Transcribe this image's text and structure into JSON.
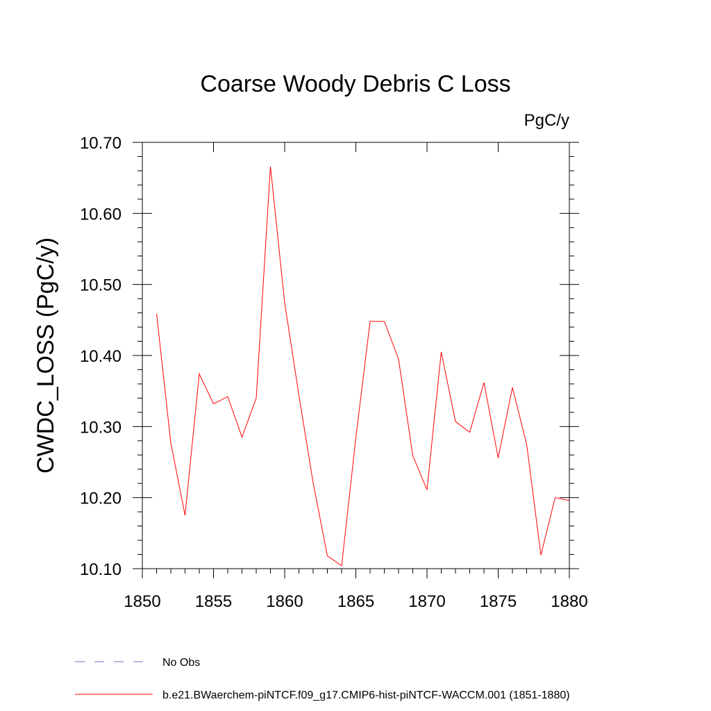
{
  "chart_data": {
    "type": "line",
    "title": "Coarse Woody Debris C Loss",
    "units": "PgC/y",
    "xlabel": "",
    "ylabel": "CWDC_LOSS  (PgC/y)",
    "xlim": [
      1850,
      1880
    ],
    "ylim": [
      10.1,
      10.7
    ],
    "x_ticks": [
      1850,
      1855,
      1860,
      1865,
      1870,
      1875,
      1880
    ],
    "x_tick_labels": [
      "1850",
      "1855",
      "1860",
      "1865",
      "1870",
      "1875",
      "1880"
    ],
    "y_ticks": [
      10.1,
      10.2,
      10.3,
      10.4,
      10.5,
      10.6,
      10.7
    ],
    "y_tick_labels": [
      "10.10",
      "10.20",
      "10.30",
      "10.40",
      "10.50",
      "10.60",
      "10.70"
    ],
    "grid": false,
    "legend_position": "bottom",
    "legend": [
      {
        "label": "No Obs",
        "color": "#7070c0",
        "dash": true
      },
      {
        "label": "b.e21.BWaerchem-piNTCF.f09_g17.CMIP6-hist-piNTCF-WACCM.001 (1851-1880)",
        "color": "#ff0000",
        "dash": false
      }
    ],
    "series": [
      {
        "name": "b.e21.BWaerchem-piNTCF.f09_g17.CMIP6-hist-piNTCF-WACCM.001 (1851-1880)",
        "color": "#ff0000",
        "x": [
          1851,
          1852,
          1853,
          1854,
          1855,
          1856,
          1857,
          1858,
          1859,
          1860,
          1861,
          1862,
          1863,
          1864,
          1865,
          1866,
          1867,
          1868,
          1869,
          1870,
          1871,
          1872,
          1873,
          1874,
          1875,
          1876,
          1877,
          1878,
          1879,
          1880
        ],
        "y": [
          10.459,
          10.277,
          10.175,
          10.374,
          10.332,
          10.342,
          10.285,
          10.34,
          10.666,
          10.474,
          10.344,
          10.221,
          10.118,
          10.104,
          10.284,
          10.448,
          10.448,
          10.395,
          10.259,
          10.211,
          10.405,
          10.307,
          10.292,
          10.362,
          10.256,
          10.355,
          10.275,
          10.119,
          10.2,
          10.196
        ]
      }
    ]
  }
}
